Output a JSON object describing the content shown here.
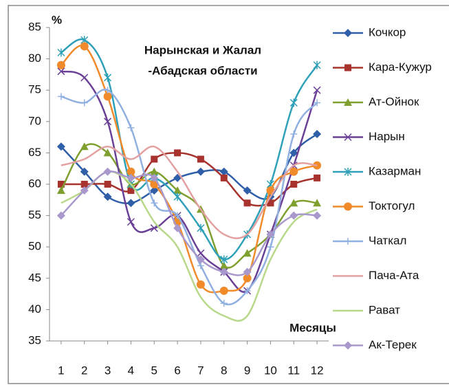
{
  "chart_data": {
    "type": "line",
    "title": [
      "Нарынская и Жалал",
      "-Абадская области"
    ],
    "y_label": "%",
    "x_label": "Месяцы",
    "x": [
      1,
      2,
      3,
      4,
      5,
      6,
      7,
      8,
      9,
      10,
      11,
      12
    ],
    "xlim": [
      0.5,
      12.5
    ],
    "xticks": [
      1,
      2,
      3,
      4,
      5,
      6,
      7,
      8,
      9,
      10,
      11,
      12
    ],
    "ylim": [
      35,
      85
    ],
    "yticks": [
      35,
      40,
      45,
      50,
      55,
      60,
      65,
      70,
      75,
      80,
      85
    ],
    "grid": false,
    "legend": "right",
    "series": [
      {
        "name": "Кочкор",
        "color": "#2f5fa8",
        "marker": "diamond",
        "values": [
          66,
          62,
          58,
          57,
          59,
          61,
          62,
          62,
          59,
          58,
          65,
          68
        ]
      },
      {
        "name": "Кара-Кужур",
        "color": "#a8322d",
        "marker": "square",
        "values": [
          60,
          60,
          60,
          59,
          64,
          65,
          64,
          61,
          57,
          57,
          60,
          61
        ]
      },
      {
        "name": "Ат-Ойнок",
        "color": "#7f9f2f",
        "marker": "triangle",
        "values": [
          59,
          66,
          65,
          60,
          62,
          59,
          56,
          47,
          49,
          52,
          57,
          57
        ]
      },
      {
        "name": "Нарын",
        "color": "#6a3f96",
        "marker": "x",
        "values": [
          78,
          77,
          70,
          54,
          53,
          55,
          49,
          46,
          43,
          52,
          63,
          75
        ]
      },
      {
        "name": "Казарман",
        "color": "#2ea0b8",
        "marker": "star",
        "values": [
          81,
          83,
          77,
          60,
          61,
          58,
          53,
          48,
          52,
          60,
          73,
          79
        ]
      },
      {
        "name": "Токтогул",
        "color": "#f08a2a",
        "marker": "circle",
        "values": [
          79,
          82,
          74,
          62,
          60,
          54,
          44,
          43,
          45,
          59,
          62,
          63
        ]
      },
      {
        "name": "Чаткал",
        "color": "#8fb0e0",
        "marker": "plus",
        "values": [
          74,
          73,
          75,
          69,
          57,
          55,
          47,
          41,
          43,
          50,
          68,
          73
        ]
      },
      {
        "name": "Пача-Ата",
        "color": "#e3a0a0",
        "marker": "none",
        "values": [
          63,
          64,
          66,
          64,
          66,
          62,
          56,
          52,
          52,
          58,
          63,
          63
        ]
      },
      {
        "name": "Рават",
        "color": "#b8d88a",
        "marker": "none",
        "values": [
          57,
          59,
          62,
          60,
          54,
          50,
          42,
          39,
          39,
          48,
          54,
          56
        ]
      },
      {
        "name": "Ак-Терек",
        "color": "#a898cc",
        "marker": "diamond",
        "values": [
          55,
          59,
          62,
          61,
          61,
          53,
          48,
          46,
          46,
          52,
          55,
          55
        ]
      }
    ]
  }
}
